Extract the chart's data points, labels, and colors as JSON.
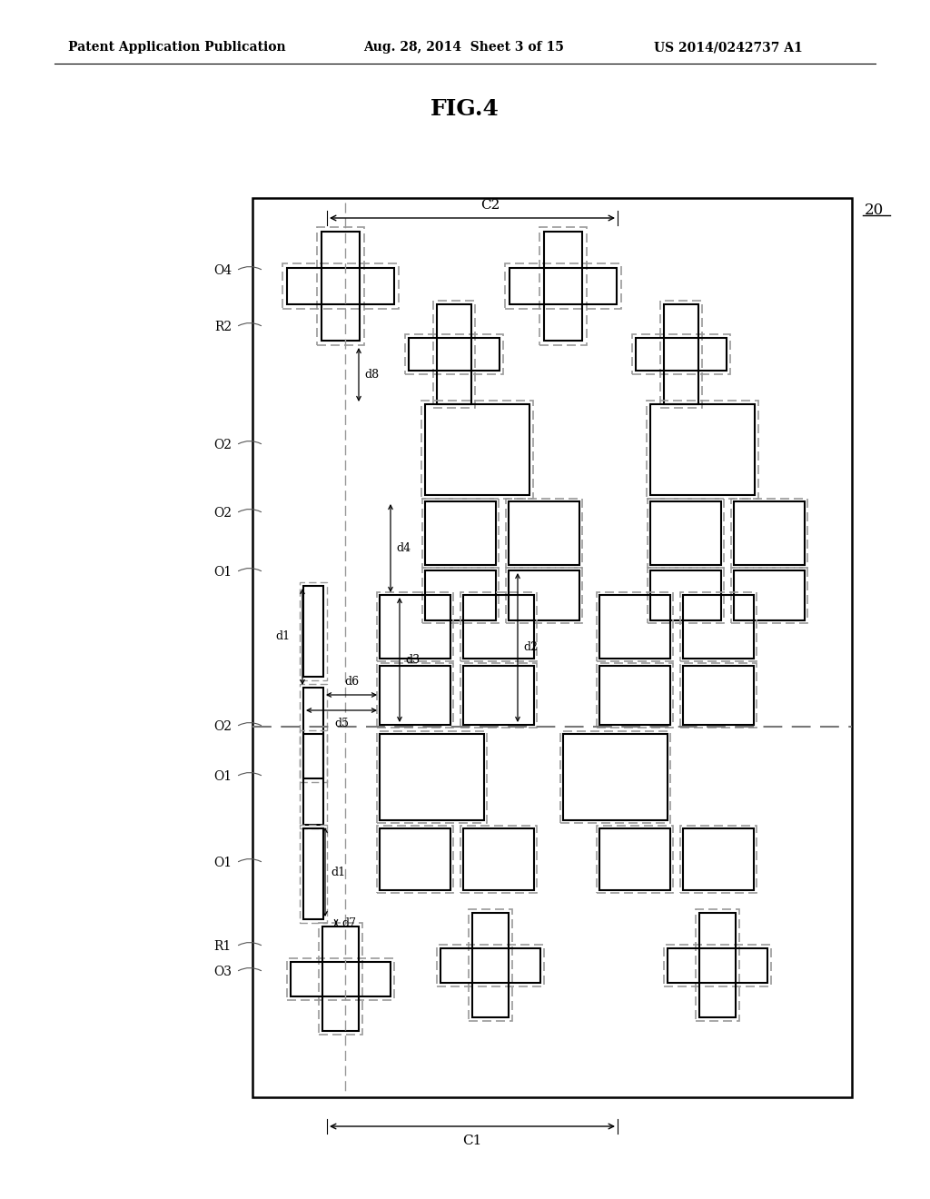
{
  "title": "FIG.4",
  "header_left": "Patent Application Publication",
  "header_mid": "Aug. 28, 2014  Sheet 3 of 15",
  "header_right": "US 2014/0242737 A1",
  "bg_color": "#ffffff",
  "lc": "#000000",
  "dc": "#777777",
  "OX": 278,
  "OY": 218,
  "OW": 660,
  "OH": 990
}
